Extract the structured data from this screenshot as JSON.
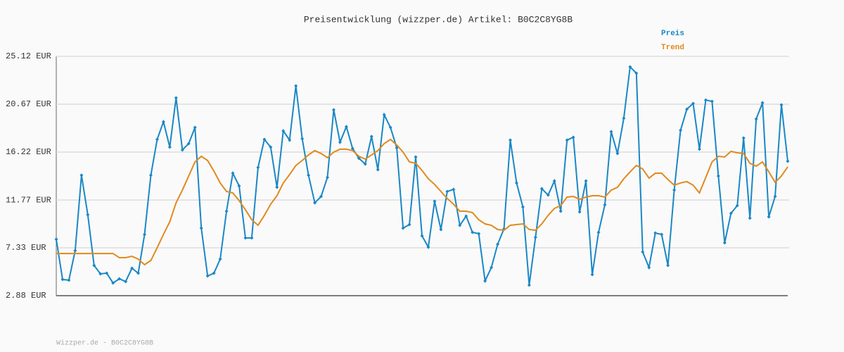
{
  "chart_data": {
    "type": "line",
    "title": "Preisentwicklung (wizzper.de) Artikel: B0C2C8YG8B",
    "footer": "Wizzper.de - B0C2C8YG8B",
    "ylim": [
      2.88,
      25.12
    ],
    "yticks": [
      {
        "value": 2.88,
        "label": "2.88 EUR"
      },
      {
        "value": 7.33,
        "label": "7.33 EUR"
      },
      {
        "value": 11.77,
        "label": "11.77 EUR"
      },
      {
        "value": 16.22,
        "label": "16.22 EUR"
      },
      {
        "value": 20.67,
        "label": "20.67 EUR"
      },
      {
        "value": 25.12,
        "label": "25.12 EUR"
      }
    ],
    "grid": true,
    "series": [
      {
        "name": "Preis",
        "color": "#1a87c5",
        "markers": true,
        "values": [
          8.12,
          4.39,
          4.32,
          7.07,
          14.07,
          10.4,
          5.69,
          4.91,
          4.97,
          4.06,
          4.45,
          4.19,
          5.43,
          4.97,
          8.57,
          14.07,
          17.4,
          19.04,
          16.68,
          21.26,
          16.42,
          17.01,
          18.51,
          9.16,
          4.71,
          4.97,
          6.28,
          10.73,
          14.26,
          13.08,
          8.24,
          8.24,
          14.79,
          17.4,
          16.68,
          12.95,
          18.19,
          17.34,
          22.37,
          17.47,
          14.07,
          11.51,
          12.1,
          13.87,
          20.15,
          17.14,
          18.58,
          16.55,
          15.64,
          15.11,
          17.67,
          14.59,
          19.69,
          18.51,
          16.62,
          9.16,
          9.49,
          15.77,
          8.44,
          7.39,
          11.65,
          9.03,
          12.56,
          12.76,
          9.42,
          10.27,
          8.77,
          8.64,
          4.25,
          5.5,
          7.66,
          9.09,
          17.34,
          13.35,
          11.12,
          3.86,
          8.31,
          12.82,
          12.23,
          13.54,
          10.73,
          17.34,
          17.6,
          10.66,
          13.54,
          4.84,
          8.77,
          11.32,
          18.12,
          16.09,
          19.36,
          24.14,
          23.55,
          6.94,
          5.5,
          8.7,
          8.57,
          5.69,
          12.69,
          18.25,
          20.21,
          20.74,
          16.49,
          21.06,
          20.93,
          14.0,
          7.79,
          10.53,
          11.25,
          17.53,
          10.08,
          19.3,
          20.8,
          10.21,
          12.1,
          20.61,
          15.37
        ]
      },
      {
        "name": "Trend",
        "color": "#e08a1e",
        "markers": false,
        "values": [
          6.8,
          6.8,
          6.8,
          6.8,
          6.8,
          6.8,
          6.8,
          6.8,
          6.8,
          6.8,
          6.41,
          6.41,
          6.54,
          6.28,
          5.76,
          6.15,
          7.33,
          8.57,
          9.75,
          11.51,
          12.69,
          14.0,
          15.31,
          15.83,
          15.44,
          14.46,
          13.35,
          12.56,
          12.43,
          11.71,
          10.86,
          9.94,
          9.42,
          10.34,
          11.38,
          12.17,
          13.35,
          14.13,
          14.98,
          15.44,
          15.96,
          16.36,
          16.09,
          15.7,
          16.22,
          16.49,
          16.49,
          16.36,
          15.83,
          15.57,
          15.96,
          16.36,
          17.01,
          17.4,
          16.88,
          16.22,
          15.31,
          15.18,
          14.52,
          13.74,
          13.22,
          12.56,
          11.91,
          11.38,
          10.73,
          10.73,
          10.6,
          9.94,
          9.55,
          9.42,
          9.03,
          8.96,
          9.42,
          9.49,
          9.55,
          9.03,
          8.96,
          9.55,
          10.34,
          10.99,
          11.25,
          12.04,
          12.1,
          11.84,
          12.04,
          12.17,
          12.17,
          12.04,
          12.69,
          12.95,
          13.74,
          14.39,
          14.98,
          14.65,
          13.8,
          14.26,
          14.26,
          13.67,
          13.15,
          13.35,
          13.48,
          13.15,
          12.43,
          13.87,
          15.31,
          15.83,
          15.77,
          16.29,
          16.16,
          16.09,
          15.18,
          14.92,
          15.31,
          14.39,
          13.41,
          14.0,
          14.85
        ]
      }
    ]
  }
}
